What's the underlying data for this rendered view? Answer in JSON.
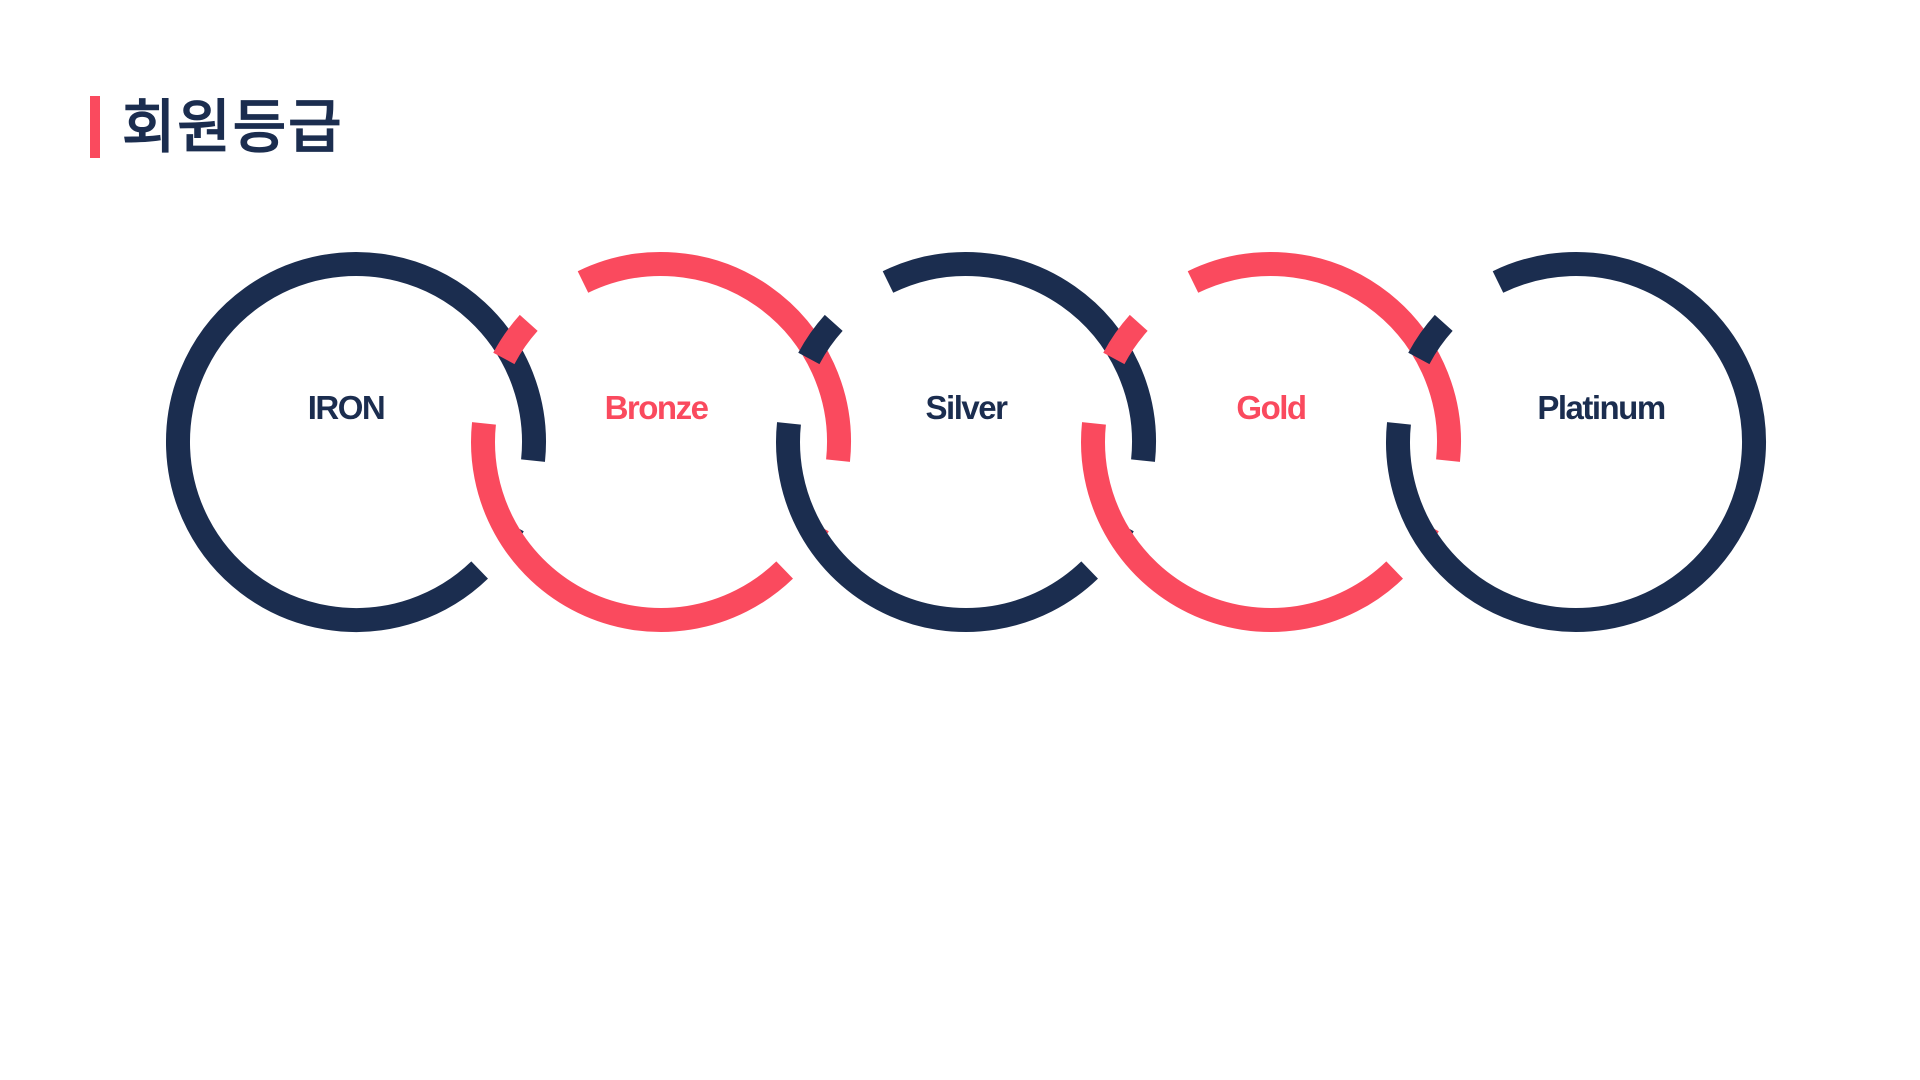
{
  "title": {
    "text": "회원등급",
    "bar_color": "#FA4A5E",
    "text_color": "#1B2D4F"
  },
  "colors": {
    "navy": "#1B2D4F",
    "red": "#FA4A5E"
  },
  "tiers": [
    {
      "label": "IRON",
      "color": "#1B2D4F"
    },
    {
      "label": "Bronze",
      "color": "#FA4A5E"
    },
    {
      "label": "Silver",
      "color": "#1B2D4F"
    },
    {
      "label": "Gold",
      "color": "#FA4A5E"
    },
    {
      "label": "Platinum",
      "color": "#1B2D4F"
    }
  ]
}
